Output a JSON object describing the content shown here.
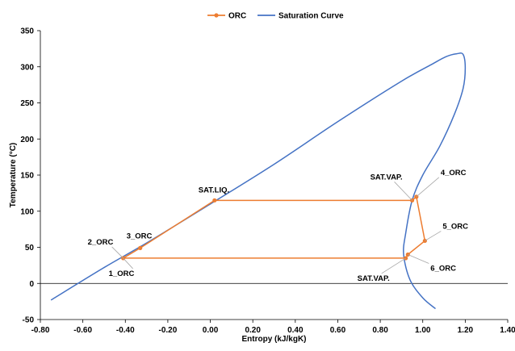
{
  "chart_data": {
    "type": "scatter",
    "xlabel": "Entropy (kJ/kgK)",
    "ylabel": "Temperature (°C)",
    "xlim": [
      -0.8,
      1.4
    ],
    "ylim": [
      -50,
      350
    ],
    "x_ticks": [
      "-0.80",
      "-0.60",
      "-0.40",
      "-0.20",
      "0.00",
      "0.20",
      "0.40",
      "0.60",
      "0.80",
      "1.00",
      "1.20",
      "1.40"
    ],
    "y_ticks": [
      "-50",
      "0",
      "50",
      "100",
      "150",
      "200",
      "250",
      "300",
      "350"
    ],
    "legend_position": "top-center",
    "grid": false,
    "series": [
      {
        "name": "ORC",
        "color": "#ed7d31",
        "marker": "circle",
        "points": [
          {
            "x": -0.41,
            "y": 35
          },
          {
            "x": -0.33,
            "y": 49
          },
          {
            "x": 0.02,
            "y": 115
          },
          {
            "x": 0.95,
            "y": 115
          },
          {
            "x": 0.97,
            "y": 120
          },
          {
            "x": 1.01,
            "y": 59
          },
          {
            "x": 0.93,
            "y": 40
          },
          {
            "x": 0.92,
            "y": 35
          },
          {
            "x": -0.41,
            "y": 35
          }
        ]
      },
      {
        "name": "Saturation Curve",
        "color": "#4472c4",
        "marker": "none",
        "points": [
          {
            "x": -0.75,
            "y": -23
          },
          {
            "x": -0.5,
            "y": 22
          },
          {
            "x": -0.3,
            "y": 56
          },
          {
            "x": 0.0,
            "y": 110
          },
          {
            "x": 0.3,
            "y": 165
          },
          {
            "x": 0.6,
            "y": 224
          },
          {
            "x": 0.9,
            "y": 280
          },
          {
            "x": 1.04,
            "y": 303
          },
          {
            "x": 1.11,
            "y": 314
          },
          {
            "x": 1.16,
            "y": 318
          },
          {
            "x": 1.19,
            "y": 317
          },
          {
            "x": 1.2,
            "y": 298
          },
          {
            "x": 1.19,
            "y": 270
          },
          {
            "x": 1.15,
            "y": 235
          },
          {
            "x": 1.08,
            "y": 190
          },
          {
            "x": 1.0,
            "y": 150
          },
          {
            "x": 0.95,
            "y": 115
          },
          {
            "x": 0.92,
            "y": 70
          },
          {
            "x": 0.91,
            "y": 40
          },
          {
            "x": 0.94,
            "y": 5
          },
          {
            "x": 1.0,
            "y": -20
          },
          {
            "x": 1.06,
            "y": -35
          }
        ]
      }
    ],
    "annotations": [
      {
        "text": "1_ORC",
        "x": -0.41,
        "y": 35
      },
      {
        "text": "2_ORC",
        "x": -0.41,
        "y": 35
      },
      {
        "text": "3_ORC",
        "x": -0.33,
        "y": 49
      },
      {
        "text": "SAT.LIQ.",
        "x": 0.02,
        "y": 115
      },
      {
        "text": "SAT.VAP.",
        "x": 0.95,
        "y": 115
      },
      {
        "text": "4_ORC",
        "x": 0.97,
        "y": 120
      },
      {
        "text": "5_ORC",
        "x": 1.01,
        "y": 59
      },
      {
        "text": "6_ORC",
        "x": 0.93,
        "y": 40
      },
      {
        "text": "SAT.VAP.",
        "x": 0.92,
        "y": 35
      }
    ]
  }
}
